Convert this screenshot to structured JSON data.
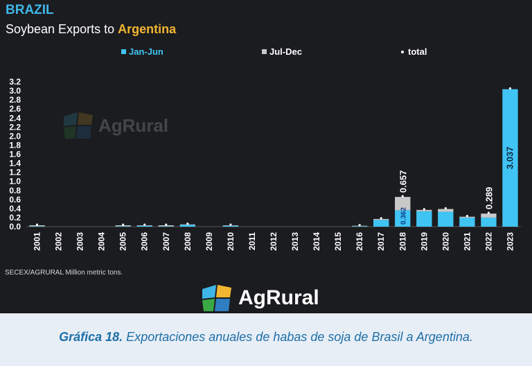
{
  "header": {
    "title": "BRAZIL",
    "subtitle_prefix": "Soybean Exports to ",
    "subtitle_highlight": "Argentina"
  },
  "source_note": "SECEX/AGRURAL  Million metric tons.",
  "logo_text": "AgRural",
  "watermark_text": "AgRural",
  "caption": {
    "label": "Gráfica 18.",
    "text": " Exportaciones anuales de habas de soja de Brasil a Argentina."
  },
  "colors": {
    "jan_jun": "#40c4f4",
    "jul_dec": "#c8c8c8",
    "background": "#1b1c1f",
    "title": "#3fb6e8",
    "highlight": "#f2b632",
    "caption": "#1e6fa8"
  },
  "chart_data": {
    "type": "bar",
    "stacked": true,
    "categories": [
      "2001",
      "2002",
      "2003",
      "2004",
      "2005",
      "2006",
      "2007",
      "2008",
      "2009",
      "2010",
      "2011",
      "2012",
      "2013",
      "2014",
      "2015",
      "2016",
      "2017",
      "2018",
      "2019",
      "2020",
      "2021",
      "2022",
      "2023"
    ],
    "series": [
      {
        "name": "Jan-Jun",
        "values": [
          0.01,
          0,
          0,
          0,
          0.01,
          0.02,
          0.01,
          0.04,
          0,
          0.02,
          0,
          0,
          0,
          0,
          0,
          0.01,
          0.15,
          0.362,
          0.34,
          0.33,
          0.2,
          0.2,
          3.037
        ]
      },
      {
        "name": "Jul-Dec",
        "values": [
          0.02,
          0,
          0,
          0,
          0.02,
          0.01,
          0.02,
          0.01,
          0,
          0.01,
          0,
          0,
          0,
          0,
          0,
          0.01,
          0.02,
          0.295,
          0.03,
          0.06,
          0.02,
          0.089,
          0
        ]
      },
      {
        "name": "total",
        "values": [
          0.03,
          0,
          0,
          0,
          0.03,
          0.03,
          0.03,
          0.05,
          0,
          0.03,
          0,
          0,
          0,
          0,
          0,
          0.02,
          0.17,
          0.657,
          0.37,
          0.39,
          0.22,
          0.289,
          3.037
        ]
      }
    ],
    "data_labels": [
      {
        "category": "2018",
        "series": "Jan-Jun",
        "text": "0.362"
      },
      {
        "category": "2018",
        "series": "total",
        "text": "0.657"
      },
      {
        "category": "2022",
        "series": "total",
        "text": "0.289"
      },
      {
        "category": "2023",
        "series": "Jan-Jun",
        "text": "3.037"
      }
    ],
    "y_ticks": [
      "0.0",
      "0.2",
      "0.4",
      "0.6",
      "0.8",
      "1.0",
      "1.2",
      "1.4",
      "1.6",
      "1.8",
      "2.0",
      "2.2",
      "2.4",
      "2.6",
      "2.8",
      "3.0",
      "3.2"
    ],
    "ylim": [
      0,
      3.2
    ],
    "legend": [
      "Jan-Jun",
      "Jul-Dec",
      "total"
    ],
    "legend_position": "top",
    "grid": false
  }
}
